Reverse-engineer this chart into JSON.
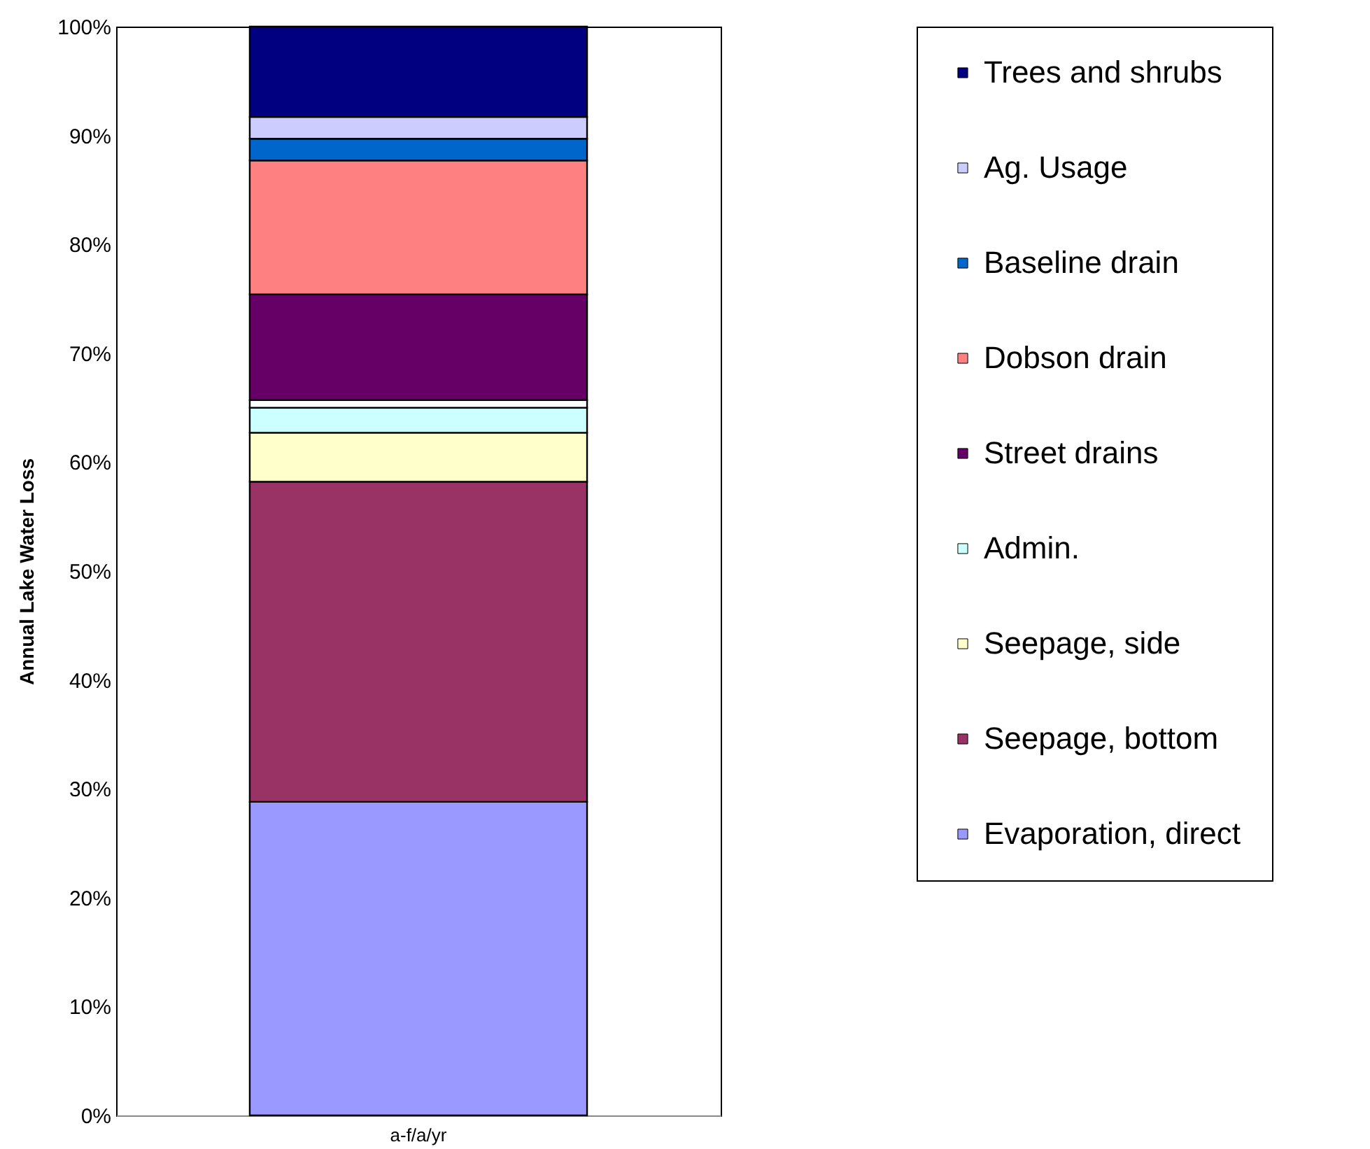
{
  "chart_data": {
    "type": "bar",
    "stacked": true,
    "ylabel": "Annual Lake Water Loss",
    "categories": [
      "a-f/a/yr"
    ],
    "series": [
      {
        "name": "Evaporation, direct",
        "color": "#9999ff",
        "values": [
          28.8
        ]
      },
      {
        "name": "Seepage, bottom",
        "color": "#993366",
        "values": [
          29.4
        ]
      },
      {
        "name": "Seepage, side",
        "color": "#ffffcc",
        "values": [
          4.5
        ]
      },
      {
        "name": "Admin.",
        "color": "#ccffff",
        "values": [
          2.3
        ]
      },
      {
        "color": "#ffffff",
        "values": [
          0.7
        ]
      },
      {
        "name": "Street drains",
        "color": "#660066",
        "values": [
          9.7
        ]
      },
      {
        "name": "Dobson drain",
        "color": "#ff8080",
        "values": [
          12.3
        ]
      },
      {
        "name": "Baseline drain",
        "color": "#0066cc",
        "values": [
          2.0
        ]
      },
      {
        "name": "Ag. Usage",
        "color": "#ccccff",
        "values": [
          2.0
        ]
      },
      {
        "name": "Trees and shrubs",
        "color": "#000080",
        "values": [
          8.3
        ]
      }
    ],
    "ylim": [
      0,
      100
    ],
    "yticks": [
      {
        "value": 0,
        "label": "0%"
      },
      {
        "value": 10,
        "label": "10%"
      },
      {
        "value": 20,
        "label": "20%"
      },
      {
        "value": 30,
        "label": "30%"
      },
      {
        "value": 40,
        "label": "40%"
      },
      {
        "value": 50,
        "label": "50%"
      },
      {
        "value": 60,
        "label": "60%"
      },
      {
        "value": 70,
        "label": "70%"
      },
      {
        "value": 80,
        "label": "80%"
      },
      {
        "value": 90,
        "label": "90%"
      },
      {
        "value": 100,
        "label": "100%"
      }
    ],
    "grid": false,
    "legend": "right"
  }
}
